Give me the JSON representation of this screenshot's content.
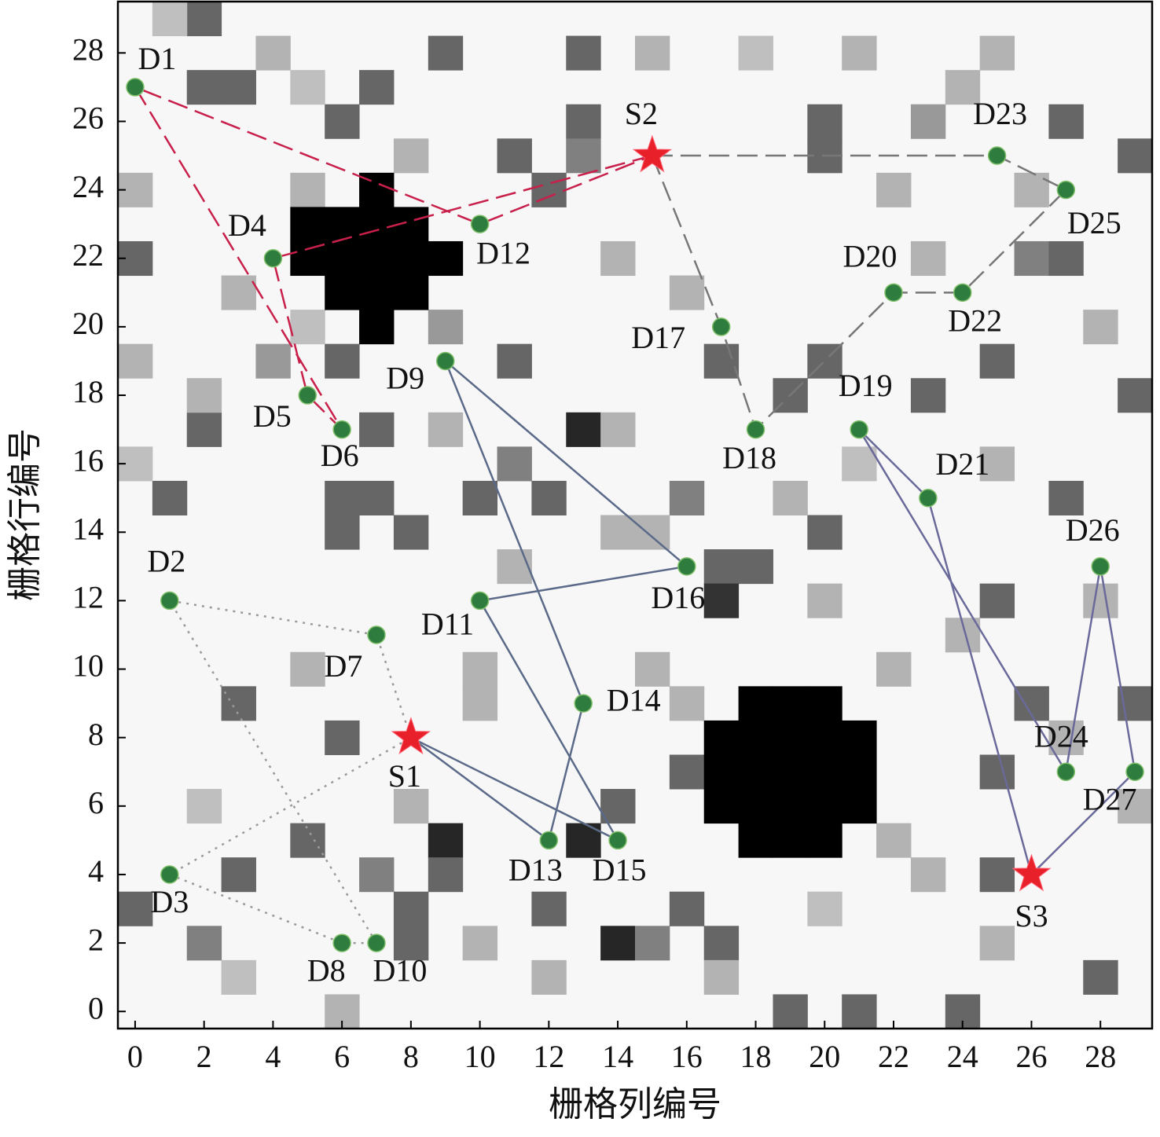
{
  "chart_data": {
    "type": "grid-map",
    "xlabel": "栅格列编号",
    "ylabel": "栅格行编号",
    "xlim": [
      -0.5,
      29.5
    ],
    "ylim": [
      -0.5,
      29.5
    ],
    "xticks": [
      0,
      2,
      4,
      6,
      8,
      10,
      12,
      14,
      16,
      18,
      20,
      22,
      24,
      26,
      28
    ],
    "yticks": [
      0,
      2,
      4,
      6,
      8,
      10,
      12,
      14,
      16,
      18,
      20,
      22,
      24,
      26,
      28
    ],
    "obstacles": [
      [
        7,
        24
      ],
      [
        5,
        23
      ],
      [
        6,
        23
      ],
      [
        7,
        23
      ],
      [
        8,
        23
      ],
      [
        5,
        22
      ],
      [
        6,
        22
      ],
      [
        7,
        22
      ],
      [
        8,
        22
      ],
      [
        9,
        22
      ],
      [
        6,
        21
      ],
      [
        7,
        21
      ],
      [
        8,
        21
      ],
      [
        7,
        20
      ],
      [
        18,
        9
      ],
      [
        19,
        9
      ],
      [
        20,
        9
      ],
      [
        17,
        8
      ],
      [
        18,
        8
      ],
      [
        19,
        8
      ],
      [
        20,
        8
      ],
      [
        21,
        8
      ],
      [
        17,
        7
      ],
      [
        18,
        7
      ],
      [
        19,
        7
      ],
      [
        20,
        7
      ],
      [
        21,
        7
      ],
      [
        17,
        6
      ],
      [
        18,
        6
      ],
      [
        19,
        6
      ],
      [
        20,
        6
      ],
      [
        21,
        6
      ],
      [
        18,
        5
      ],
      [
        19,
        5
      ],
      [
        20,
        5
      ]
    ],
    "cells": [
      [
        2,
        29,
        0.6
      ],
      [
        9,
        28,
        0.6
      ],
      [
        13,
        28,
        0.6
      ],
      [
        3,
        27,
        0.6
      ],
      [
        2,
        27,
        0.6
      ],
      [
        7,
        27,
        0.6
      ],
      [
        6,
        26,
        0.6
      ],
      [
        13,
        26,
        0.6
      ],
      [
        12,
        24,
        0.6
      ],
      [
        11,
        25,
        0.6
      ],
      [
        13,
        25,
        0.5
      ],
      [
        20,
        25,
        0.6
      ],
      [
        20,
        26,
        0.6
      ],
      [
        23,
        26,
        0.4
      ],
      [
        29,
        25,
        0.6
      ],
      [
        27,
        26,
        0.6
      ],
      [
        0,
        22,
        0.6
      ],
      [
        26,
        22,
        0.5
      ],
      [
        27,
        22,
        0.6
      ],
      [
        9,
        20,
        0.4
      ],
      [
        4,
        19,
        0.4
      ],
      [
        6,
        19,
        0.6
      ],
      [
        11,
        19,
        0.6
      ],
      [
        17,
        19,
        0.6
      ],
      [
        19,
        18,
        0.6
      ],
      [
        25,
        19,
        0.6
      ],
      [
        29,
        18,
        0.6
      ],
      [
        23,
        18,
        0.6
      ],
      [
        20,
        19,
        0.6
      ],
      [
        2,
        17,
        0.6
      ],
      [
        7,
        17,
        0.6
      ],
      [
        13,
        17,
        0.85
      ],
      [
        11,
        16,
        0.5
      ],
      [
        1,
        15,
        0.6
      ],
      [
        6,
        15,
        0.6
      ],
      [
        7,
        15,
        0.6
      ],
      [
        10,
        15,
        0.6
      ],
      [
        12,
        15,
        0.6
      ],
      [
        16,
        15,
        0.5
      ],
      [
        27,
        15,
        0.6
      ],
      [
        6,
        14,
        0.6
      ],
      [
        8,
        14,
        0.6
      ],
      [
        20,
        14,
        0.6
      ],
      [
        17,
        13,
        0.6
      ],
      [
        18,
        13,
        0.6
      ],
      [
        25,
        12,
        0.6
      ],
      [
        17,
        12,
        0.8
      ],
      [
        3,
        9,
        0.6
      ],
      [
        6,
        8,
        0.6
      ],
      [
        16,
        7,
        0.6
      ],
      [
        25,
        7,
        0.6
      ],
      [
        26,
        9,
        0.6
      ],
      [
        29,
        9,
        0.6
      ],
      [
        5,
        5,
        0.6
      ],
      [
        9,
        5,
        0.85
      ],
      [
        13,
        5,
        0.85
      ],
      [
        14,
        6,
        0.6
      ],
      [
        7,
        4,
        0.5
      ],
      [
        9,
        4,
        0.6
      ],
      [
        3,
        4,
        0.6
      ],
      [
        0,
        3,
        0.6
      ],
      [
        8,
        3,
        0.6
      ],
      [
        12,
        3,
        0.6
      ],
      [
        16,
        3,
        0.6
      ],
      [
        25,
        4,
        0.6
      ],
      [
        14,
        2,
        0.85
      ],
      [
        2,
        2,
        0.5
      ],
      [
        8,
        2,
        0.6
      ],
      [
        17,
        2,
        0.6
      ],
      [
        15,
        2,
        0.5
      ],
      [
        28,
        1,
        0.6
      ],
      [
        19,
        0,
        0.6
      ],
      [
        21,
        0,
        0.6
      ],
      [
        24,
        0,
        0.6
      ],
      [
        1,
        29,
        0.25
      ],
      [
        4,
        28,
        0.3
      ],
      [
        5,
        27,
        0.25
      ],
      [
        8,
        25,
        0.3
      ],
      [
        15,
        28,
        0.3
      ],
      [
        18,
        28,
        0.25
      ],
      [
        0,
        24,
        0.3
      ],
      [
        5,
        24,
        0.3
      ],
      [
        3,
        21,
        0.3
      ],
      [
        5,
        20,
        0.25
      ],
      [
        0,
        19,
        0.3
      ],
      [
        2,
        18,
        0.3
      ],
      [
        9,
        17,
        0.3
      ],
      [
        14,
        17,
        0.3
      ],
      [
        21,
        16,
        0.25
      ],
      [
        0,
        16,
        0.25
      ],
      [
        15,
        14,
        0.3
      ],
      [
        14,
        14,
        0.3
      ],
      [
        11,
        13,
        0.3
      ],
      [
        10,
        10,
        0.3
      ],
      [
        5,
        10,
        0.3
      ],
      [
        2,
        6,
        0.25
      ],
      [
        8,
        6,
        0.3
      ],
      [
        10,
        9,
        0.3
      ],
      [
        15,
        10,
        0.3
      ],
      [
        16,
        9,
        0.3
      ],
      [
        22,
        10,
        0.3
      ],
      [
        24,
        11,
        0.3
      ],
      [
        28,
        12,
        0.3
      ],
      [
        27,
        8,
        0.3
      ],
      [
        22,
        5,
        0.3
      ],
      [
        23,
        4,
        0.3
      ],
      [
        20,
        3,
        0.25
      ],
      [
        10,
        2,
        0.3
      ],
      [
        12,
        1,
        0.3
      ],
      [
        3,
        1,
        0.25
      ],
      [
        6,
        0,
        0.3
      ],
      [
        17,
        1,
        0.3
      ],
      [
        25,
        2,
        0.3
      ],
      [
        29,
        6,
        0.3
      ],
      [
        19,
        15,
        0.3
      ],
      [
        20,
        12,
        0.3
      ],
      [
        25,
        16,
        0.3
      ],
      [
        28,
        20,
        0.3
      ],
      [
        23,
        22,
        0.3
      ],
      [
        26,
        24,
        0.3
      ],
      [
        21,
        28,
        0.3
      ],
      [
        25,
        28,
        0.3
      ],
      [
        24,
        27,
        0.3
      ],
      [
        16,
        21,
        0.3
      ],
      [
        14,
        22,
        0.3
      ],
      [
        22,
        24,
        0.3
      ]
    ],
    "routes": [
      {
        "color": "#9a9a9a",
        "style": "dotted",
        "x": [
          8,
          7,
          1,
          7,
          6,
          1,
          8
        ],
        "y": [
          8,
          11,
          12,
          2,
          2,
          4,
          8
        ]
      },
      {
        "color": "#5a6a88",
        "style": "solid",
        "x": [
          8,
          12,
          13,
          9,
          16,
          10,
          14,
          8
        ],
        "y": [
          8,
          5,
          9,
          19,
          13,
          12,
          5,
          8
        ]
      },
      {
        "color": "#c8204a",
        "style": "dashed",
        "x": [
          15,
          4,
          5,
          6,
          0,
          10,
          15
        ],
        "y": [
          25,
          22,
          18,
          17,
          27,
          23,
          25
        ]
      },
      {
        "color": "#777777",
        "style": "dashed",
        "x": [
          15,
          25,
          27,
          24,
          22,
          18,
          17,
          15
        ],
        "y": [
          25,
          25,
          24,
          21,
          21,
          17,
          20,
          25
        ]
      },
      {
        "color": "#6a6a9a",
        "style": "solid",
        "x": [
          26,
          23,
          21,
          27,
          28,
          29,
          26
        ],
        "y": [
          4,
          15,
          17,
          7,
          13,
          7,
          4
        ]
      }
    ],
    "points": [
      {
        "label": "D1",
        "x": 0,
        "y": 27
      },
      {
        "label": "D2",
        "x": 1,
        "y": 12
      },
      {
        "label": "D3",
        "x": 1,
        "y": 4
      },
      {
        "label": "D4",
        "x": 4,
        "y": 22
      },
      {
        "label": "D5",
        "x": 5,
        "y": 18
      },
      {
        "label": "D6",
        "x": 6,
        "y": 17
      },
      {
        "label": "D7",
        "x": 7,
        "y": 11
      },
      {
        "label": "D8",
        "x": 6,
        "y": 2
      },
      {
        "label": "D9",
        "x": 9,
        "y": 19
      },
      {
        "label": "D10",
        "x": 7,
        "y": 2
      },
      {
        "label": "D11",
        "x": 10,
        "y": 12
      },
      {
        "label": "D12",
        "x": 10,
        "y": 23
      },
      {
        "label": "D13",
        "x": 12,
        "y": 5
      },
      {
        "label": "D14",
        "x": 13,
        "y": 9
      },
      {
        "label": "D15",
        "x": 14,
        "y": 5
      },
      {
        "label": "D16",
        "x": 16,
        "y": 13
      },
      {
        "label": "D17",
        "x": 17,
        "y": 20
      },
      {
        "label": "D18",
        "x": 18,
        "y": 17
      },
      {
        "label": "D19",
        "x": 21,
        "y": 17
      },
      {
        "label": "D20",
        "x": 22,
        "y": 21
      },
      {
        "label": "D21",
        "x": 23,
        "y": 15
      },
      {
        "label": "D22",
        "x": 24,
        "y": 21
      },
      {
        "label": "D23",
        "x": 25,
        "y": 25
      },
      {
        "label": "D24",
        "x": 27,
        "y": 7
      },
      {
        "label": "D25",
        "x": 27,
        "y": 24
      },
      {
        "label": "D26",
        "x": 28,
        "y": 13
      },
      {
        "label": "D27",
        "x": 29,
        "y": 7
      }
    ],
    "depots": [
      {
        "label": "S1",
        "x": 8,
        "y": 8
      },
      {
        "label": "S2",
        "x": 15,
        "y": 25
      },
      {
        "label": "S3",
        "x": 26,
        "y": 4
      }
    ]
  }
}
